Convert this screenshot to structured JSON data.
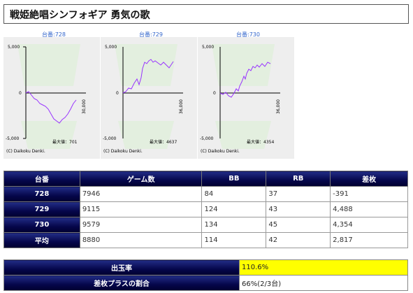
{
  "page": {
    "title": "戦姫絶唱シンフォギア 勇気の歌"
  },
  "graphs": [
    {
      "label": "台番:728",
      "max_text": "最大値：701",
      "copyright": "(C) Daikoku Denki.",
      "ytop": "5,000",
      "ybottom": "-5,000",
      "zero": "0",
      "xend": "30,000"
    },
    {
      "label": "台番:729",
      "max_text": "最大値：4637",
      "copyright": "(C) Daikoku Denki.",
      "ytop": "5,000",
      "ybottom": "-5,000",
      "zero": "0",
      "xend": "36,000"
    },
    {
      "label": "台番:730",
      "max_text": "最大値：4354",
      "copyright": "(C) Daikoku Denki.",
      "ytop": "5,000",
      "ybottom": "-5,000",
      "zero": "0",
      "xend": "36,000"
    }
  ],
  "table": {
    "headers": [
      "台番",
      "ゲーム数",
      "BB",
      "RB",
      "差枚"
    ],
    "rows": [
      [
        "728",
        "7946",
        "84",
        "37",
        "-391"
      ],
      [
        "729",
        "9115",
        "124",
        "43",
        "4,488"
      ],
      [
        "730",
        "9579",
        "134",
        "45",
        "4,354"
      ],
      [
        "平均",
        "8880",
        "114",
        "42",
        "2,817"
      ]
    ]
  },
  "summary": {
    "payout_label": "出玉率",
    "payout_value": "110.6%",
    "plus_label": "差枚プラスの割合",
    "plus_value": "66%(2/3台)"
  },
  "colors": {
    "line": "#9933ff",
    "header_bg": "#05064a",
    "negative": "#e00000",
    "highlight": "#ffff00"
  }
}
